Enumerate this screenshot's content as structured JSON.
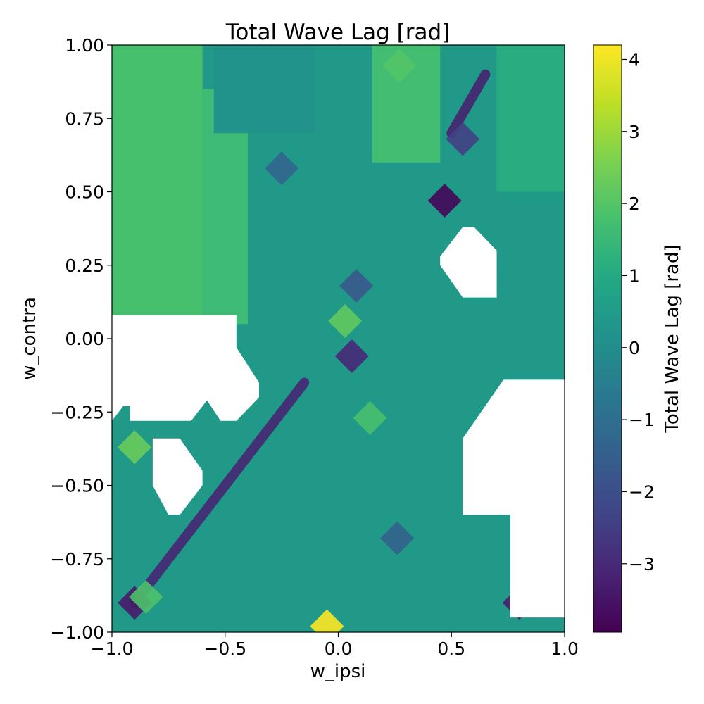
{
  "chart_data": {
    "type": "heatmap",
    "title": "Total Wave Lag [rad]",
    "xlabel": "w_ipsi",
    "ylabel": "w_contra",
    "xlim": [
      -1.0,
      1.0
    ],
    "ylim": [
      -1.0,
      1.0
    ],
    "x_ticks": [
      "−1.0",
      "−0.5",
      "0.0",
      "0.5",
      "1.0"
    ],
    "x_tick_values": [
      -1.0,
      -0.5,
      0.0,
      0.5,
      1.0
    ],
    "y_ticks": [
      "1.00",
      "0.75",
      "0.50",
      "0.25",
      "0.00",
      "−0.25",
      "−0.50",
      "−0.75",
      "−1.00"
    ],
    "y_tick_values": [
      1.0,
      0.75,
      0.5,
      0.25,
      0.0,
      -0.25,
      -0.5,
      -0.75,
      -1.0
    ],
    "colorbar": {
      "label": "Total Wave Lag [rad]",
      "min": -3.95,
      "max": 4.2,
      "ticks": [
        "4",
        "3",
        "2",
        "1",
        "0",
        "−1",
        "−2",
        "−3"
      ],
      "tick_values": [
        4,
        3,
        2,
        1,
        0,
        -1,
        -2,
        -3
      ],
      "colormap": "viridis"
    },
    "grid": false,
    "background_value": 0.4,
    "regions": [
      {
        "shape": "rect",
        "x0": -1.0,
        "x1": -0.6,
        "y0": 0.05,
        "y1": 1.0,
        "value": 1.8
      },
      {
        "shape": "rect",
        "x0": -0.6,
        "x1": -0.4,
        "y0": 0.05,
        "y1": 0.85,
        "value": 1.6
      },
      {
        "shape": "rect",
        "x0": -0.55,
        "x1": -0.1,
        "y0": 0.7,
        "y1": 1.0,
        "value": 0.2
      },
      {
        "shape": "rect",
        "x0": 0.15,
        "x1": 0.45,
        "y0": 0.6,
        "y1": 1.0,
        "value": 1.7
      },
      {
        "shape": "rect",
        "x0": 0.7,
        "x1": 1.0,
        "y0": 0.5,
        "y1": 1.0,
        "value": 1.1
      }
    ],
    "ridges": [
      {
        "x0": -0.9,
        "y0": -0.9,
        "x1": -0.15,
        "y1": -0.15,
        "value": -3.2
      },
      {
        "x0": 0.5,
        "y0": 0.7,
        "x1": 0.65,
        "y1": 0.9,
        "value": -3.3
      }
    ],
    "hotspots": [
      {
        "x": -0.05,
        "y": -0.98,
        "value": 4.2
      },
      {
        "x": 0.47,
        "y": 0.47,
        "value": -3.8
      },
      {
        "x": 0.06,
        "y": -0.06,
        "value": -3.0
      },
      {
        "x": 0.8,
        "y": -0.9,
        "value": -3.3
      },
      {
        "x": -0.9,
        "y": -0.9,
        "value": -3.4
      },
      {
        "x": -0.25,
        "y": 0.58,
        "value": -1.3
      },
      {
        "x": 0.08,
        "y": 0.18,
        "value": -1.7
      },
      {
        "x": 0.03,
        "y": 0.06,
        "value": 2.2
      },
      {
        "x": -0.9,
        "y": -0.37,
        "value": 2.3
      },
      {
        "x": 0.14,
        "y": -0.27,
        "value": 1.8
      },
      {
        "x": 0.26,
        "y": -0.68,
        "value": -1.4
      },
      {
        "x": 0.55,
        "y": 0.68,
        "value": -2.4
      },
      {
        "x": -0.85,
        "y": -0.88,
        "value": 1.9
      },
      {
        "x": 0.27,
        "y": 0.93,
        "value": 2.0
      }
    ],
    "missing_regions": [
      [
        [
          -1.0,
          0.08
        ],
        [
          -0.45,
          0.08
        ],
        [
          -0.45,
          -0.03
        ],
        [
          -0.35,
          -0.15
        ],
        [
          -0.35,
          -0.2
        ],
        [
          -0.45,
          -0.28
        ],
        [
          -0.52,
          -0.28
        ],
        [
          -0.58,
          -0.21
        ],
        [
          -0.65,
          -0.28
        ],
        [
          -0.92,
          -0.28
        ],
        [
          -0.92,
          -0.23
        ],
        [
          -0.95,
          -0.23
        ],
        [
          -1.0,
          -0.28
        ]
      ],
      [
        [
          -0.82,
          -0.34
        ],
        [
          -0.7,
          -0.34
        ],
        [
          -0.6,
          -0.45
        ],
        [
          -0.6,
          -0.5
        ],
        [
          -0.7,
          -0.6
        ],
        [
          -0.75,
          -0.6
        ],
        [
          -0.82,
          -0.5
        ]
      ],
      [
        [
          0.55,
          0.38
        ],
        [
          0.6,
          0.38
        ],
        [
          0.7,
          0.3
        ],
        [
          0.7,
          0.14
        ],
        [
          0.55,
          0.14
        ],
        [
          0.45,
          0.25
        ],
        [
          0.45,
          0.28
        ]
      ],
      [
        [
          0.73,
          -0.14
        ],
        [
          1.0,
          -0.14
        ],
        [
          1.0,
          -0.95
        ],
        [
          0.76,
          -0.95
        ],
        [
          0.76,
          -0.6
        ],
        [
          0.55,
          -0.6
        ],
        [
          0.55,
          -0.34
        ]
      ]
    ]
  }
}
